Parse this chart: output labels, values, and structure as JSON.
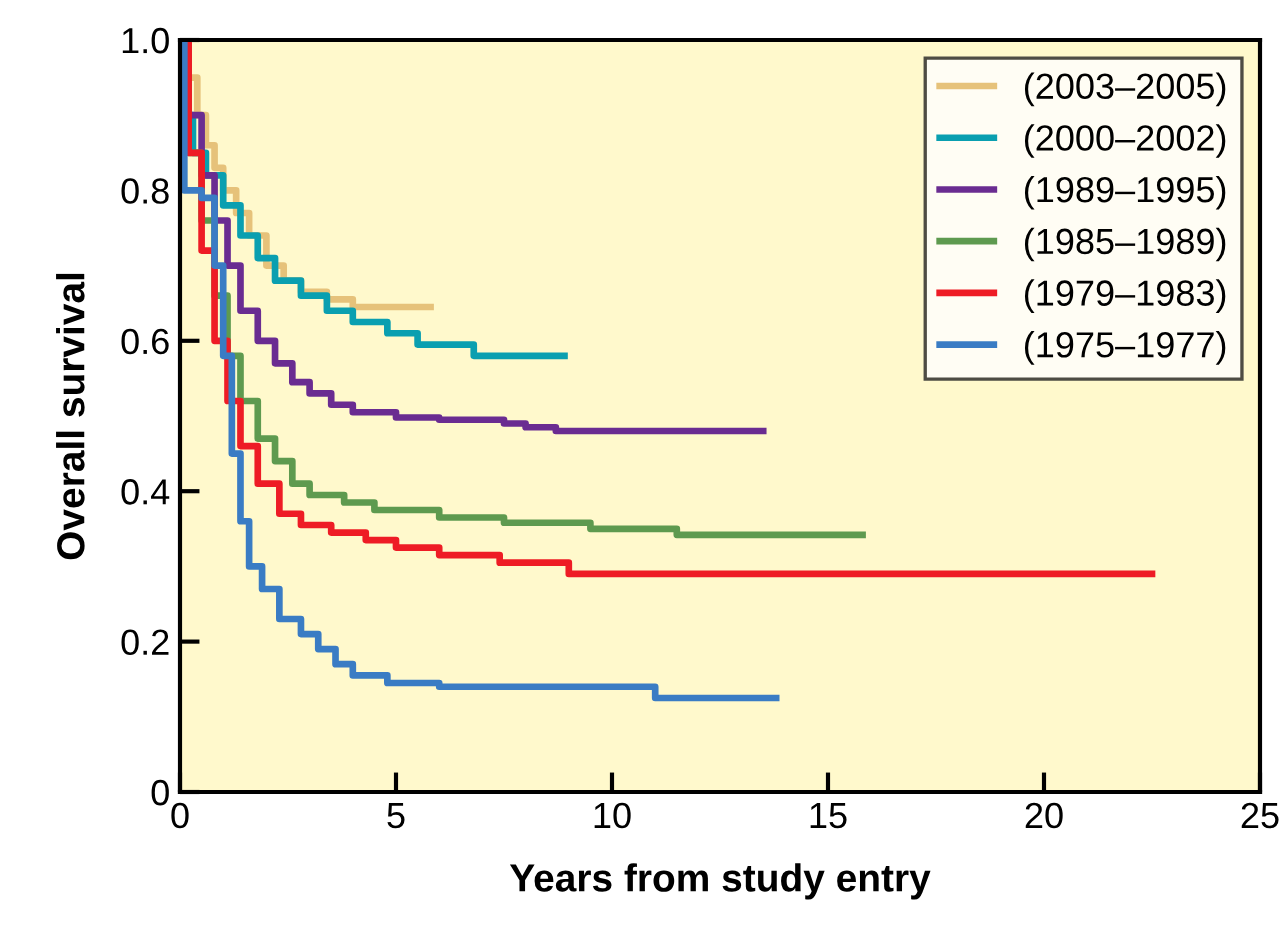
{
  "chart_data": {
    "type": "step",
    "xlabel": "Years from study entry",
    "ylabel": "Overall survival",
    "xlim": [
      0,
      25
    ],
    "xticks": [
      0,
      5,
      10,
      15,
      20,
      25
    ],
    "ylim": [
      0,
      1.0
    ],
    "yticks": [
      {
        "value": 0,
        "label": "0"
      },
      {
        "value": 0.2,
        "label": "0.2"
      },
      {
        "value": 0.4,
        "label": "0.4"
      },
      {
        "value": 0.6,
        "label": "0.6"
      },
      {
        "value": 0.8,
        "label": "0.8"
      },
      {
        "value": 1.0,
        "label": "1.0"
      }
    ],
    "grid": false,
    "legend": "top right",
    "line_style": "solid",
    "series": [
      {
        "name": "(2003–2005)",
        "color": "#e6c27a",
        "x": [
          0,
          0.2,
          0.4,
          0.6,
          0.8,
          1.0,
          1.3,
          1.6,
          2.0,
          2.4,
          2.8,
          3.4,
          4.0,
          5.8
        ],
        "values": [
          1.0,
          0.95,
          0.9,
          0.86,
          0.83,
          0.8,
          0.77,
          0.74,
          0.7,
          0.68,
          0.665,
          0.655,
          0.645,
          0.645
        ]
      },
      {
        "name": "(2000–2002)",
        "color": "#0a9fb0",
        "x": [
          0,
          0.1,
          0.3,
          0.6,
          1.0,
          1.4,
          1.8,
          2.2,
          2.8,
          3.4,
          4.0,
          4.8,
          5.5,
          6.8,
          8.9
        ],
        "values": [
          1.0,
          0.9,
          0.85,
          0.82,
          0.78,
          0.74,
          0.71,
          0.68,
          0.66,
          0.64,
          0.625,
          0.61,
          0.595,
          0.58,
          0.58
        ]
      },
      {
        "name": "(1989–1995)",
        "color": "#6a2c91",
        "x": [
          0,
          0.2,
          0.5,
          0.8,
          1.1,
          1.4,
          1.8,
          2.2,
          2.6,
          3.0,
          3.5,
          4.0,
          5.0,
          6.0,
          7.5,
          8.0,
          8.7,
          13.5
        ],
        "values": [
          1.0,
          0.9,
          0.82,
          0.76,
          0.7,
          0.64,
          0.6,
          0.57,
          0.545,
          0.53,
          0.515,
          0.505,
          0.498,
          0.495,
          0.49,
          0.485,
          0.48,
          0.48
        ]
      },
      {
        "name": "(1985–1989)",
        "color": "#5e9a4f",
        "x": [
          0,
          0.2,
          0.5,
          0.8,
          1.1,
          1.4,
          1.8,
          2.2,
          2.6,
          3.0,
          3.8,
          4.5,
          6.0,
          7.5,
          9.5,
          11.5,
          15.8
        ],
        "values": [
          1.0,
          0.85,
          0.76,
          0.66,
          0.58,
          0.52,
          0.47,
          0.44,
          0.41,
          0.395,
          0.385,
          0.375,
          0.365,
          0.358,
          0.35,
          0.342,
          0.342
        ]
      },
      {
        "name": "(1979–1983)",
        "color": "#ee1c25",
        "x": [
          0,
          0.2,
          0.5,
          0.8,
          1.1,
          1.4,
          1.8,
          2.3,
          2.8,
          3.5,
          4.3,
          5.0,
          6.0,
          7.4,
          9.0,
          22.5
        ],
        "values": [
          1.0,
          0.85,
          0.72,
          0.6,
          0.52,
          0.46,
          0.41,
          0.37,
          0.355,
          0.345,
          0.335,
          0.325,
          0.315,
          0.305,
          0.29,
          0.29
        ]
      },
      {
        "name": "(1975–1977)",
        "color": "#3a7cc4",
        "x": [
          0,
          0.1,
          0.5,
          0.8,
          1.0,
          1.2,
          1.4,
          1.6,
          1.9,
          2.3,
          2.8,
          3.2,
          3.6,
          4.0,
          4.8,
          6.0,
          11.0,
          13.8
        ],
        "values": [
          1.0,
          0.8,
          0.79,
          0.7,
          0.58,
          0.45,
          0.36,
          0.3,
          0.27,
          0.23,
          0.21,
          0.19,
          0.17,
          0.155,
          0.145,
          0.14,
          0.125,
          0.125
        ]
      }
    ]
  }
}
